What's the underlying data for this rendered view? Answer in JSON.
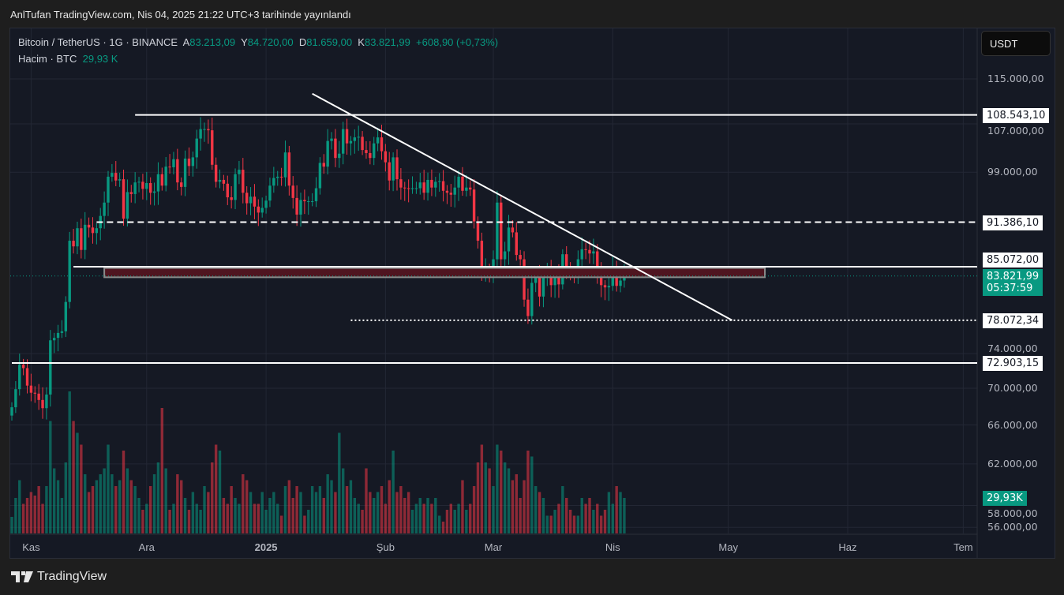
{
  "published": "AnlTufan TradingView.com, Nis 04, 2025 21:22 UTC+3 tarihinde yayınlandı",
  "legend": {
    "symbol": "Bitcoin / TetherUS · 1G · BINANCE",
    "open_label": "A",
    "open": "83.213,09",
    "high_label": "Y",
    "high": "84.720,00",
    "low_label": "D",
    "low": "81.659,00",
    "close_label": "K",
    "close": "83.821,99",
    "change": "+608,90 (+0,73%)",
    "volume_label": "Hacim · BTC",
    "volume": "29,93 K"
  },
  "currency_button": "USDT",
  "branding": "TradingView",
  "price_axis": [
    "115.000,00",
    "107.000,00",
    "99.000,00",
    "74.000,00",
    "70.000,00",
    "66.000,00",
    "62.000,00",
    "58.000,00",
    "56.000,00"
  ],
  "price_axis_values": [
    115000,
    107000,
    99000,
    74000,
    70000,
    66000,
    62000,
    58000,
    56000
  ],
  "tags": {
    "l1": "108.543,10",
    "l2": "91.386,10",
    "l3": "85.072,00",
    "current": "83.821,99",
    "countdown": "05:37:59",
    "l4": "78.072,34",
    "l5": "72.903,15",
    "volume": "29,93K"
  },
  "colors": {
    "up": "#089981",
    "down": "#f23645",
    "bg": "#151924"
  },
  "chart_data": {
    "type": "candlestick",
    "start_date": "2024-10-27",
    "interval": "1D",
    "months": [
      {
        "label": "Kas",
        "day": 5
      },
      {
        "label": "Ara",
        "day": 35
      },
      {
        "label": "2025",
        "day": 66
      },
      {
        "label": "Şub",
        "day": 97
      },
      {
        "label": "Mar",
        "day": 125
      },
      {
        "label": "Nis",
        "day": 156
      },
      {
        "label": "May",
        "day": 186
      },
      {
        "label": "Haz",
        "day": 217
      },
      {
        "label": "Tem",
        "day": 247
      }
    ],
    "first_open": 67000,
    "closes": [
      67900,
      69900,
      72700,
      72300,
      70300,
      69500,
      69400,
      68700,
      67800,
      69300,
      75600,
      75900,
      76500,
      76700,
      80400,
      88700,
      87900,
      90500,
      87400,
      91000,
      90600,
      89800,
      90500,
      92300,
      94300,
      98300,
      98900,
      97700,
      97900,
      91900,
      95900,
      95600,
      97400,
      97500,
      96400,
      97300,
      95800,
      96000,
      98700,
      96900,
      99900,
      99800,
      101100,
      97400,
      96700,
      101200,
      100000,
      101400,
      104500,
      106100,
      106100,
      105900,
      100200,
      97500,
      97800,
      97200,
      95100,
      94700,
      98700,
      99400,
      95800,
      94200,
      95200,
      93700,
      92800,
      93500,
      94600,
      96900,
      98100,
      98300,
      98200,
      102200,
      96900,
      95000,
      92500,
      94700,
      94500,
      94500,
      94500,
      96500,
      100500,
      99900,
      104100,
      104500,
      101300,
      102000,
      106100,
      103700,
      104100,
      104700,
      104800,
      102600,
      102100,
      101300,
      103700,
      104700,
      102400,
      100600,
      97700,
      101400,
      97900,
      96600,
      96500,
      96400,
      96500,
      96500,
      97400,
      95800,
      97800,
      96600,
      97500,
      97600,
      96100,
      95800,
      95500,
      96600,
      98300,
      96100,
      96600,
      96300,
      91500,
      88700,
      84300,
      84700,
      84300,
      86100,
      94300,
      86100,
      87200,
      90600,
      89900,
      86700,
      86100,
      80700,
      78600,
      82900,
      83700,
      81100,
      84000,
      84300,
      82600,
      84000,
      82700,
      86800,
      84200,
      84100,
      83800,
      86100,
      87500,
      87400,
      86900,
      87200,
      84300,
      82600,
      82300,
      82500,
      85100,
      82500,
      83213,
      83822
    ],
    "volumes_k": [
      14,
      30,
      45,
      25,
      30,
      35,
      32,
      40,
      25,
      40,
      95,
      55,
      45,
      30,
      60,
      120,
      95,
      85,
      75,
      50,
      35,
      40,
      45,
      50,
      55,
      75,
      50,
      40,
      45,
      70,
      55,
      45,
      40,
      30,
      20,
      25,
      40,
      50,
      60,
      106,
      55,
      20,
      25,
      50,
      45,
      30,
      20,
      35,
      25,
      20,
      40,
      35,
      60,
      75,
      70,
      30,
      25,
      40,
      30,
      25,
      50,
      45,
      35,
      25,
      25,
      35,
      20,
      30,
      35,
      25,
      15,
      40,
      45,
      30,
      40,
      35,
      15,
      20,
      40,
      35,
      40,
      30,
      50,
      45,
      35,
      85,
      55,
      40,
      45,
      30,
      25,
      20,
      55,
      35,
      30,
      35,
      40,
      25,
      45,
      70,
      35,
      40,
      30,
      35,
      20,
      25,
      30,
      25,
      30,
      25,
      30,
      15,
      10,
      20,
      25,
      20,
      25,
      45,
      20,
      25,
      40,
      60,
      75,
      60,
      55,
      40,
      75,
      70,
      60,
      55,
      45,
      50,
      30,
      45,
      70,
      65,
      40,
      35,
      30,
      15,
      15,
      20,
      25,
      40,
      30,
      20,
      15,
      15,
      30,
      25,
      30,
      20,
      25,
      15,
      20,
      35,
      25,
      40,
      35,
      30
    ],
    "drawings": {
      "horizontal": [
        {
          "price": 108543.1,
          "from_day": 32,
          "style": "solid"
        },
        {
          "price": 91386.1,
          "from_day": 22,
          "style": "dashed"
        },
        {
          "price": 85072.0,
          "from_day": 16,
          "style": "solid"
        },
        {
          "price": 78072.34,
          "from_day": 88,
          "style": "dotted"
        },
        {
          "price": 72903.15,
          "from_day": 0,
          "style": "solid"
        }
      ],
      "trendline": {
        "day1": 78,
        "price1": 112300,
        "day2": 187,
        "price2": 78072
      },
      "zone": {
        "day1": 24,
        "day2": 195.5,
        "top": 84900,
        "bottom": 83650
      }
    }
  }
}
